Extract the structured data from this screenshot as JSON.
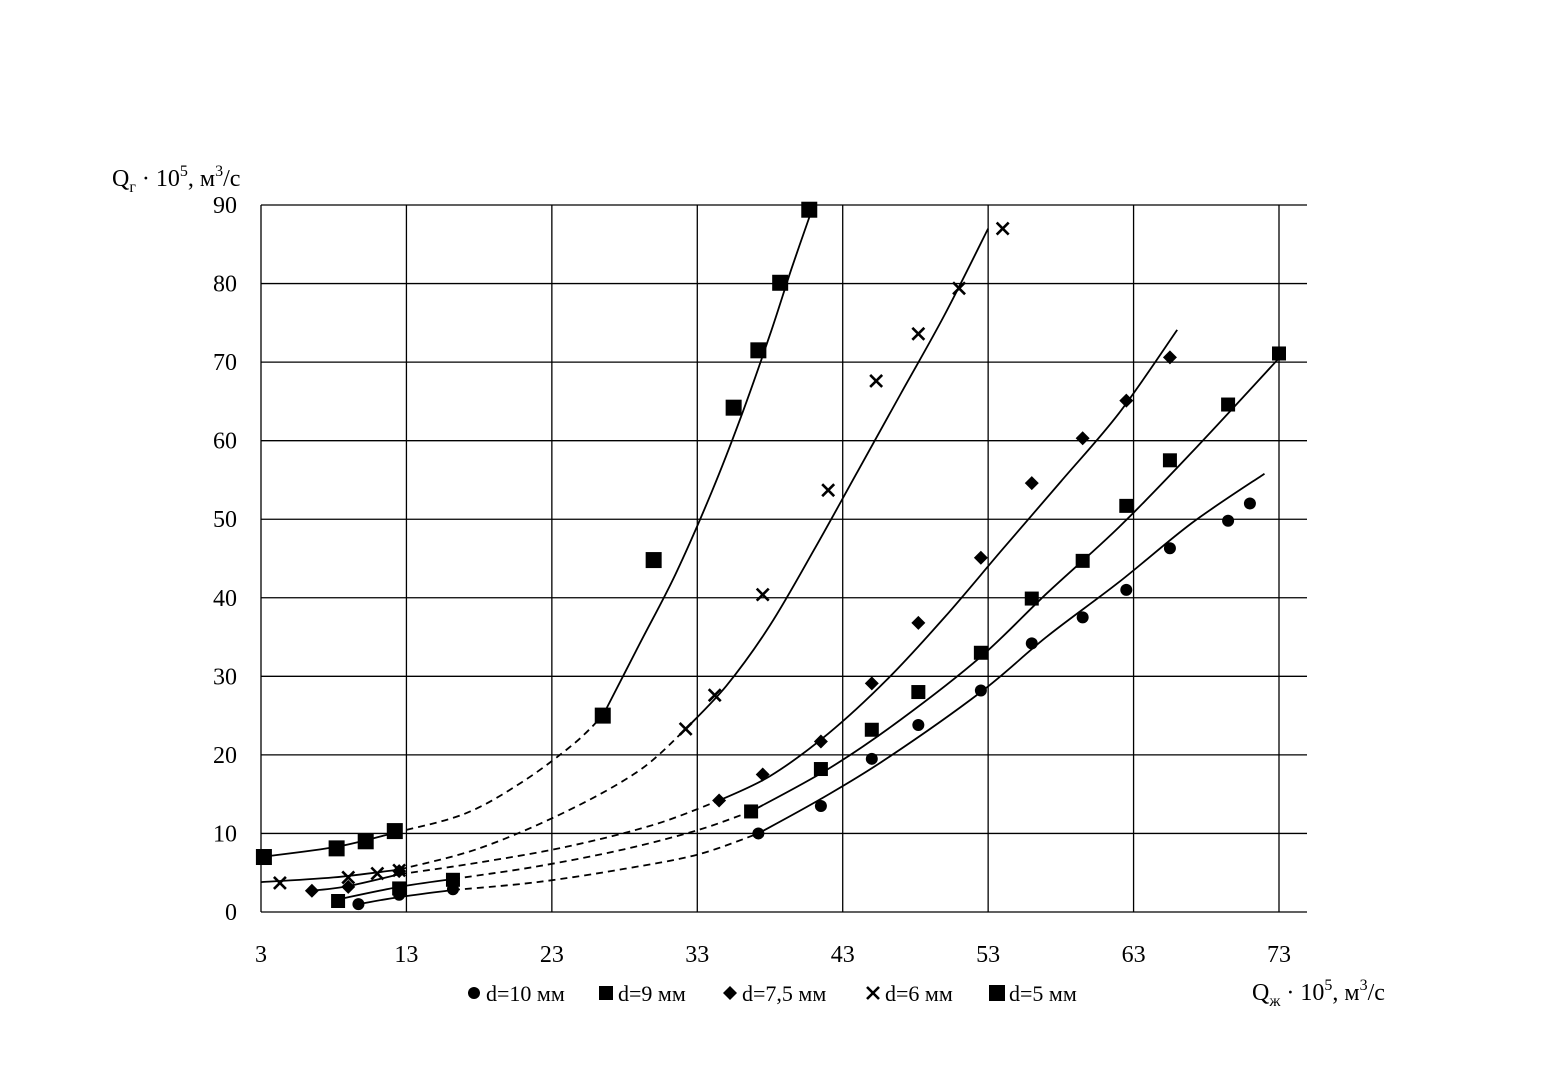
{
  "chart_data": {
    "type": "scatter",
    "ylabel": {
      "base": "Q",
      "sub": "г",
      "rest": " · 10",
      "sup": "5",
      "unit": ", м",
      "unit_sup": "3",
      "unit_tail": "/с"
    },
    "xlabel": {
      "base": "Q",
      "sub": "ж",
      "rest": " · 10",
      "sup": "5",
      "unit": ", м",
      "unit_sup": "3",
      "unit_tail": "/с"
    },
    "xlim": [
      3,
      73
    ],
    "ylim": [
      0,
      90
    ],
    "x_ticks": [
      3,
      13,
      23,
      33,
      43,
      53,
      63,
      73
    ],
    "y_ticks": [
      0,
      10,
      20,
      30,
      40,
      50,
      60,
      70,
      80,
      90
    ],
    "grid": true,
    "legend_position": "bottom",
    "series": [
      {
        "name": "d=10 мм",
        "marker": "circle",
        "points": [
          [
            9.7,
            1
          ],
          [
            12.5,
            2.2
          ],
          [
            16.2,
            2.9
          ],
          [
            37.2,
            10
          ],
          [
            41.5,
            13.5
          ],
          [
            45,
            19.5
          ],
          [
            48.2,
            23.8
          ],
          [
            52.5,
            28.2
          ],
          [
            56,
            34.2
          ],
          [
            59.5,
            37.5
          ],
          [
            62.5,
            41
          ],
          [
            65.5,
            46.3
          ],
          [
            69.5,
            49.8
          ],
          [
            71,
            52
          ]
        ],
        "curve_solid_a": [
          [
            9.7,
            1
          ],
          [
            12.5,
            1.9
          ],
          [
            16.2,
            2.8
          ]
        ],
        "curve_dashed": [
          [
            16.2,
            2.8
          ],
          [
            22,
            3.8
          ],
          [
            28,
            5.5
          ],
          [
            33,
            7.3
          ],
          [
            37.2,
            10
          ]
        ],
        "curve_solid_b": [
          [
            37.2,
            10
          ],
          [
            41.5,
            14.4
          ],
          [
            46,
            19.5
          ],
          [
            52.5,
            28
          ],
          [
            57,
            35
          ],
          [
            62,
            42
          ],
          [
            67,
            49.5
          ],
          [
            72,
            55.8
          ]
        ]
      },
      {
        "name": "d=9 мм",
        "marker": "square",
        "points": [
          [
            8.3,
            1.4
          ],
          [
            12.5,
            3
          ],
          [
            16.2,
            4.1
          ],
          [
            36.7,
            12.8
          ],
          [
            41.5,
            18.2
          ],
          [
            45,
            23.2
          ],
          [
            48.2,
            28
          ],
          [
            52.5,
            33
          ],
          [
            56,
            39.9
          ],
          [
            59.5,
            44.7
          ],
          [
            62.5,
            51.7
          ],
          [
            65.5,
            57.5
          ],
          [
            69.5,
            64.6
          ],
          [
            73,
            71.1
          ]
        ],
        "curve_solid_a": [
          [
            8.3,
            1.6
          ],
          [
            12.5,
            3.2
          ],
          [
            16.2,
            4.2
          ]
        ],
        "curve_dashed": [
          [
            16.2,
            4.2
          ],
          [
            22,
            5.8
          ],
          [
            28,
            8
          ],
          [
            33,
            10.4
          ],
          [
            36.7,
            12.8
          ]
        ],
        "curve_solid_b": [
          [
            36.7,
            12.8
          ],
          [
            42,
            18.2
          ],
          [
            47,
            24.5
          ],
          [
            52.5,
            32.5
          ],
          [
            57,
            40.5
          ],
          [
            62,
            49
          ],
          [
            67,
            58.5
          ],
          [
            73,
            70.5
          ]
        ]
      },
      {
        "name": "d=7,5 мм",
        "marker": "diamond",
        "points": [
          [
            6.5,
            2.7
          ],
          [
            9,
            3.2
          ],
          [
            12.5,
            5.2
          ],
          [
            34.5,
            14.2
          ],
          [
            37.5,
            17.5
          ],
          [
            41.5,
            21.7
          ],
          [
            45,
            29.1
          ],
          [
            48.2,
            36.8
          ],
          [
            52.5,
            45.1
          ],
          [
            56,
            54.6
          ],
          [
            59.5,
            60.3
          ],
          [
            62.5,
            65.1
          ],
          [
            65.5,
            70.6
          ]
        ],
        "curve_solid_a": [
          [
            6.5,
            2.7
          ],
          [
            9,
            3.3
          ],
          [
            12.5,
            4.8
          ]
        ],
        "curve_dashed": [
          [
            12.5,
            4.8
          ],
          [
            18,
            6.3
          ],
          [
            24,
            8.3
          ],
          [
            30,
            11.1
          ],
          [
            34.5,
            14.2
          ]
        ],
        "curve_solid_b": [
          [
            34.5,
            14.2
          ],
          [
            38,
            17.3
          ],
          [
            42,
            22.7
          ],
          [
            46,
            29.5
          ],
          [
            50,
            37.5
          ],
          [
            54,
            46.2
          ],
          [
            58,
            54.8
          ],
          [
            62,
            63.5
          ],
          [
            66,
            74.1
          ]
        ]
      },
      {
        "name": "d=6 мм",
        "marker": "cross",
        "points": [
          [
            4.3,
            3.7
          ],
          [
            9,
            4.4
          ],
          [
            11,
            4.9
          ],
          [
            12.5,
            5.3
          ],
          [
            32.2,
            23.3
          ],
          [
            34.2,
            27.6
          ],
          [
            37.5,
            40.4
          ],
          [
            42,
            53.7
          ],
          [
            45.3,
            67.6
          ],
          [
            48.2,
            73.6
          ],
          [
            51,
            79.4
          ],
          [
            54,
            87
          ]
        ],
        "curve_solid_a": [
          [
            3,
            3.8
          ],
          [
            8,
            4.4
          ],
          [
            12.5,
            5.4
          ]
        ],
        "curve_dashed": [
          [
            12.5,
            5.4
          ],
          [
            18,
            8.1
          ],
          [
            24,
            12.8
          ],
          [
            29,
            18
          ],
          [
            32.2,
            23.3
          ]
        ],
        "curve_solid_b": [
          [
            32.2,
            23.3
          ],
          [
            35,
            28.8
          ],
          [
            38,
            36.5
          ],
          [
            41,
            46
          ],
          [
            44,
            56
          ],
          [
            47,
            66
          ],
          [
            50,
            76
          ],
          [
            53,
            87
          ]
        ]
      },
      {
        "name": "d=5 мм",
        "marker": "square-lg",
        "points": [
          [
            3.2,
            7
          ],
          [
            8.2,
            8.1
          ],
          [
            10.2,
            9
          ],
          [
            12.2,
            10.3
          ],
          [
            26.5,
            25
          ],
          [
            30,
            44.8
          ],
          [
            35.5,
            64.2
          ],
          [
            37.2,
            71.5
          ],
          [
            38.7,
            80.1
          ],
          [
            40.7,
            89.4
          ]
        ],
        "curve_solid_a": [
          [
            3,
            7
          ],
          [
            8.2,
            8.3
          ],
          [
            12.2,
            10.1
          ]
        ],
        "curve_dashed": [
          [
            12.2,
            10.1
          ],
          [
            17,
            12.5
          ],
          [
            21,
            16.6
          ],
          [
            24.5,
            21.4
          ],
          [
            26.5,
            25
          ]
        ],
        "curve_solid_b": [
          [
            26.5,
            25
          ],
          [
            29,
            34
          ],
          [
            31.5,
            43
          ],
          [
            34,
            53.5
          ],
          [
            36,
            63
          ],
          [
            38,
            73.5
          ],
          [
            39.5,
            82
          ],
          [
            41,
            90
          ]
        ]
      }
    ]
  }
}
